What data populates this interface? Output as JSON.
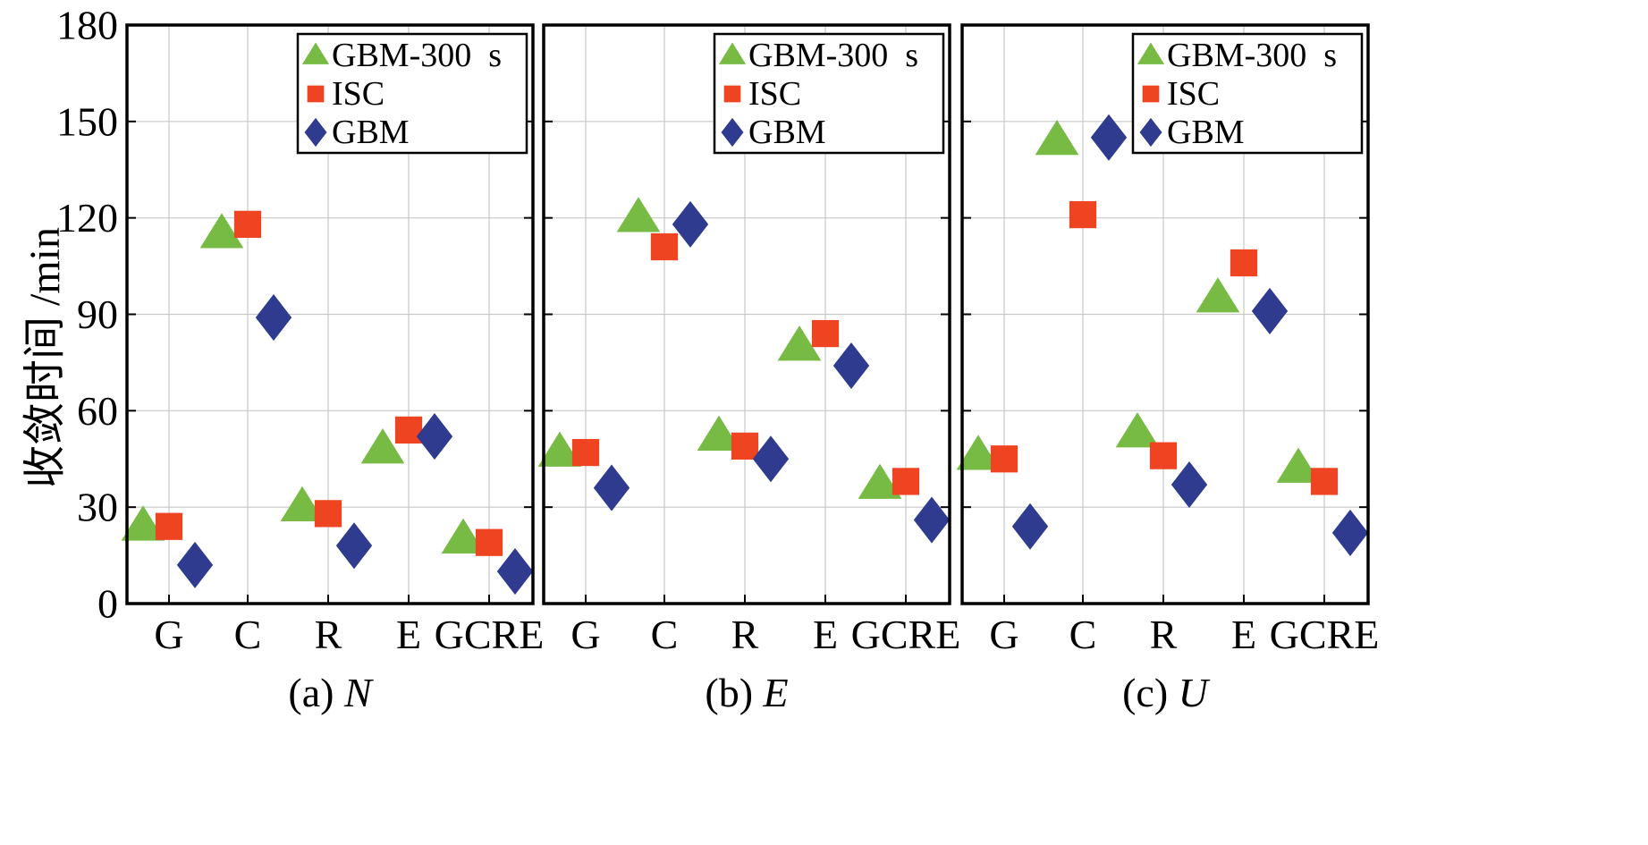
{
  "chart_data": {
    "type": "scatter",
    "ylabel": "收敛时间 /min",
    "ylim": [
      0,
      180
    ],
    "yticks": [
      0,
      30,
      60,
      90,
      120,
      150,
      180
    ],
    "categories": [
      "G",
      "C",
      "R",
      "E",
      "GCRE"
    ],
    "grid": true,
    "legend": "top-right",
    "series_style": [
      {
        "name": "GBM-300  s",
        "marker": "triangle",
        "color": "#77bb44"
      },
      {
        "name": "ISC",
        "marker": "square",
        "color": "#ee4422"
      },
      {
        "name": "GBM",
        "marker": "diamond",
        "color": "#2e3b8f"
      }
    ],
    "panels": [
      {
        "caption_prefix": "(a) ",
        "caption_var": "N",
        "series": [
          {
            "name": "GBM-300  s",
            "values": [
              24,
              115,
              30,
              48,
              20
            ]
          },
          {
            "name": "ISC",
            "values": [
              24,
              118,
              28,
              54,
              19
            ]
          },
          {
            "name": "GBM",
            "values": [
              12,
              89,
              18,
              52,
              10
            ]
          }
        ]
      },
      {
        "caption_prefix": "(b) ",
        "caption_var": "E",
        "series": [
          {
            "name": "GBM-300  s",
            "values": [
              47,
              120,
              52,
              80,
              37
            ]
          },
          {
            "name": "ISC",
            "values": [
              47,
              111,
              49,
              84,
              38
            ]
          },
          {
            "name": "GBM",
            "values": [
              36,
              118,
              45,
              74,
              26
            ]
          }
        ]
      },
      {
        "caption_prefix": "(c) ",
        "caption_var": "U",
        "series": [
          {
            "name": "GBM-300  s",
            "values": [
              46,
              144,
              53,
              95,
              42
            ]
          },
          {
            "name": "ISC",
            "values": [
              45,
              121,
              46,
              106,
              38
            ]
          },
          {
            "name": "GBM",
            "values": [
              24,
              145,
              37,
              91,
              22
            ]
          }
        ]
      }
    ]
  }
}
